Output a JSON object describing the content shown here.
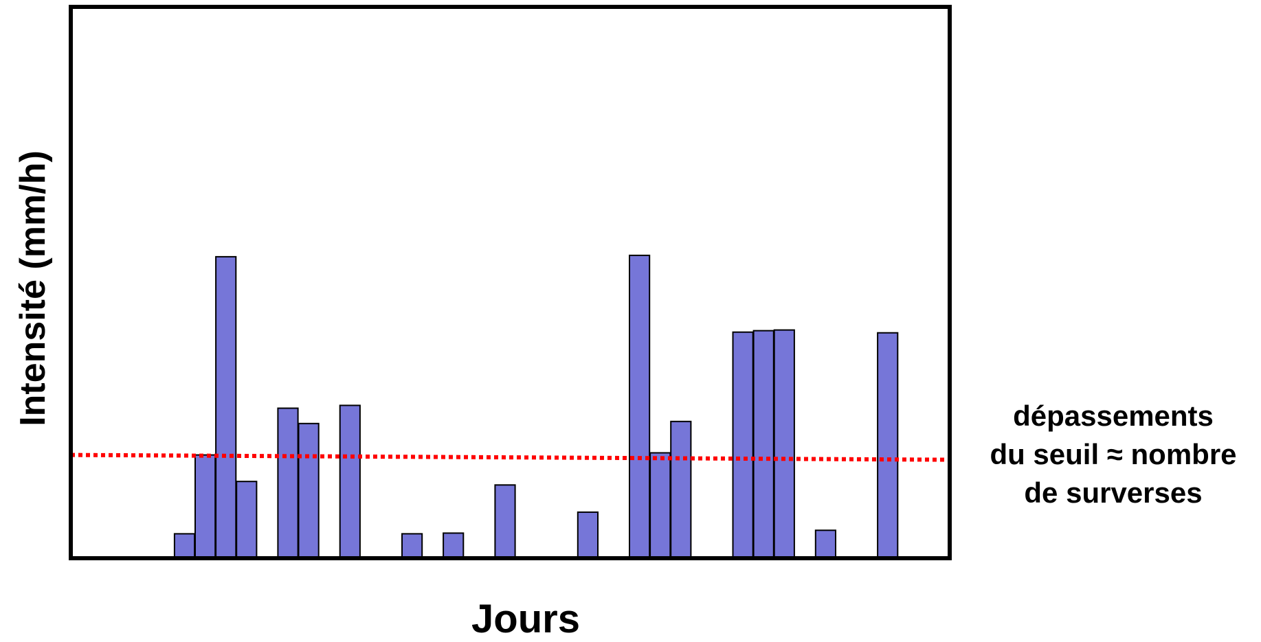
{
  "chart_data": {
    "type": "bar",
    "xlabel": "Jours",
    "ylabel": "Intensité (mm/h)",
    "threshold_annotation": [
      "dépassements",
      "du seuil ≈ nombre",
      "de surverses"
    ],
    "colors": {
      "bar": "#7676d8",
      "bar_edge": "#000000",
      "threshold": "#ff0000",
      "frame": "#000000"
    },
    "x": [
      5,
      6,
      7,
      8,
      10,
      11,
      13,
      16,
      18,
      20.5,
      24.5,
      27,
      28,
      29,
      32,
      33,
      34,
      36,
      39
    ],
    "values": [
      0.035,
      0.148,
      0.432,
      0.11,
      0.215,
      0.193,
      0.219,
      0.035,
      0.036,
      0.105,
      0.066,
      0.434,
      0.151,
      0.196,
      0.324,
      0.326,
      0.327,
      0.04,
      0.323
    ],
    "threshold": 0.148,
    "xlim": [
      -0.5,
      42
    ],
    "ylim": [
      0,
      0.79
    ],
    "grid": false,
    "legend": "none"
  }
}
